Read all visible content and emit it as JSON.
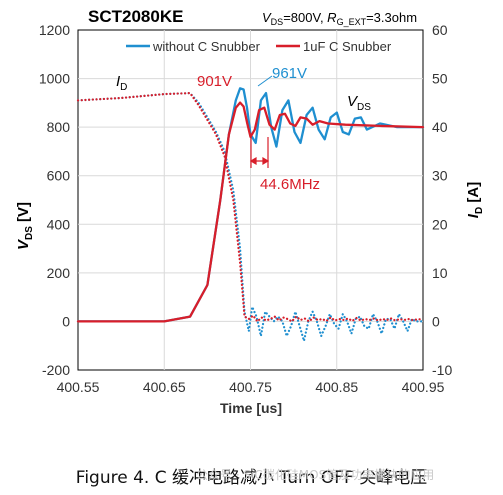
{
  "chart_data": {
    "type": "line",
    "title": "SCT2080KE",
    "conditions": {
      "vds_part": "V",
      "vds_sub": "DS",
      "vds_val": "=800V, ",
      "rg_part": "R",
      "rg_sub": "G_EXT",
      "rg_val": "=3.3ohm"
    },
    "xlabel": "Time [us]",
    "ylabel_left": {
      "main": "V",
      "sub": "DS",
      "unit": "  [V]"
    },
    "ylabel_right": {
      "main": "I",
      "sub": "D",
      "unit": "  [A]"
    },
    "xlim": [
      400.55,
      400.95
    ],
    "ylim_left": [
      -200,
      1200
    ],
    "ylim_right": [
      -10,
      60
    ],
    "xticks": [
      "400.55",
      "400.65",
      "400.75",
      "400.85",
      "400.95"
    ],
    "yticks_left": [
      "-200",
      "0",
      "200",
      "400",
      "600",
      "800",
      "1000",
      "1200"
    ],
    "yticks_right": [
      "-10",
      "0",
      "10",
      "20",
      "30",
      "40",
      "50",
      "60"
    ],
    "legend": {
      "placement": "top-center",
      "entries": [
        "without C Snubber",
        "1uF C Snubber"
      ]
    },
    "colors": {
      "without": "#1f8fd0",
      "snubber": "#d81e2a"
    },
    "series": [
      {
        "name": "without C Snubber",
        "quantity": "V_DS",
        "axis": "left",
        "style": "solid",
        "x": [
          400.55,
          400.6,
          400.65,
          400.68,
          400.7,
          400.715,
          400.725,
          400.733,
          400.738,
          400.742,
          400.746,
          400.75,
          400.756,
          400.762,
          400.768,
          400.774,
          400.78,
          400.787,
          400.794,
          400.801,
          400.808,
          400.815,
          400.822,
          400.829,
          400.836,
          400.843,
          400.85,
          400.857,
          400.864,
          400.871,
          400.878,
          400.885,
          400.9,
          400.92,
          400.95
        ],
        "y": [
          0,
          0,
          0,
          20,
          150,
          500,
          770,
          910,
          960,
          955,
          880,
          770,
          735,
          910,
          940,
          800,
          720,
          870,
          910,
          780,
          735,
          850,
          880,
          790,
          750,
          840,
          860,
          780,
          770,
          835,
          840,
          790,
          815,
          800,
          800
        ]
      },
      {
        "name": "1uF C Snubber",
        "quantity": "V_DS",
        "axis": "left",
        "style": "solid",
        "x": [
          400.55,
          400.6,
          400.65,
          400.68,
          400.7,
          400.715,
          400.725,
          400.733,
          400.738,
          400.742,
          400.746,
          400.75,
          400.755,
          400.76,
          400.766,
          400.772,
          400.778,
          400.784,
          400.79,
          400.796,
          400.802,
          400.808,
          400.815,
          400.822,
          400.83,
          400.84,
          400.86,
          400.9,
          400.95
        ],
        "y": [
          0,
          0,
          0,
          20,
          150,
          500,
          770,
          880,
          901,
          885,
          820,
          760,
          790,
          870,
          880,
          810,
          790,
          850,
          855,
          815,
          805,
          840,
          835,
          810,
          825,
          815,
          810,
          805,
          800
        ]
      },
      {
        "name": "without C Snubber",
        "quantity": "I_D",
        "axis": "right",
        "style": "dotted",
        "x": [
          400.55,
          400.6,
          400.65,
          400.68,
          400.69,
          400.7,
          400.71,
          400.72,
          400.73,
          400.738,
          400.743,
          400.748,
          400.752,
          400.757,
          400.762,
          400.767,
          400.772,
          400.777,
          400.782,
          400.787,
          400.792,
          400.797,
          400.802,
          400.807,
          400.812,
          400.817,
          400.822,
          400.827,
          400.832,
          400.837,
          400.842,
          400.847,
          400.852,
          400.857,
          400.862,
          400.867,
          400.872,
          400.877,
          400.882,
          400.887,
          400.892,
          400.897,
          400.902,
          400.907,
          400.912,
          400.917,
          400.922,
          400.927,
          400.932,
          400.937,
          400.942,
          400.95
        ],
        "y": [
          45.5,
          46,
          46.8,
          47,
          45,
          42,
          39,
          35,
          27,
          15,
          2,
          -2,
          3,
          1,
          -3,
          2,
          1,
          0,
          1,
          0,
          -3,
          -1,
          2,
          -1,
          -4,
          0,
          2,
          0,
          -3,
          -1,
          1.5,
          -0.5,
          -1.5,
          1.5,
          0,
          -2.5,
          0.5,
          1,
          -1,
          -1.5,
          1.5,
          0,
          -2.5,
          0.5,
          0.5,
          -1.5,
          1.5,
          0,
          -2,
          0.5,
          0,
          0
        ]
      },
      {
        "name": "1uF C Snubber",
        "quantity": "I_D",
        "axis": "right",
        "style": "dotted",
        "x": [
          400.55,
          400.6,
          400.65,
          400.68,
          400.69,
          400.7,
          400.71,
          400.72,
          400.73,
          400.738,
          400.743,
          400.748,
          400.753,
          400.758,
          400.763,
          400.768,
          400.773,
          400.778,
          400.783,
          400.788,
          400.793,
          400.798,
          400.803,
          400.808,
          400.813,
          400.818,
          400.823,
          400.828,
          400.833,
          400.838,
          400.843,
          400.848,
          400.853,
          400.858,
          400.863,
          400.868,
          400.873,
          400.878,
          400.883,
          400.888,
          400.893,
          400.898,
          400.903,
          400.908,
          400.913,
          400.918,
          400.923,
          400.928,
          400.933,
          400.938,
          400.943,
          400.95
        ],
        "y": [
          45.5,
          46,
          46.8,
          47,
          44.5,
          41.5,
          38.5,
          34,
          25,
          12,
          1,
          0.5,
          1.2,
          0,
          0.8,
          0.2,
          0.5,
          1,
          0.2,
          0.8,
          0.5,
          0,
          1,
          0.3,
          0.6,
          0,
          0.8,
          0.3,
          0.5,
          0.1,
          0.8,
          0.2,
          0.5,
          0.3,
          0.6,
          0.1,
          0.7,
          0.2,
          0.5,
          0.3,
          0.6,
          0.2,
          0.5,
          0.3,
          0.6,
          0.2,
          0.5,
          0.3,
          0.5,
          0.3,
          0.4,
          0.5
        ]
      }
    ],
    "annotations": {
      "id_label": {
        "main": "I",
        "sub": "D"
      },
      "vds_label": {
        "main": "V",
        "sub": "DS"
      },
      "peak_red": "901V",
      "peak_blue": "961V",
      "ring_freq": "44.6MHz"
    }
  },
  "caption": "Figure 4. C 缓冲电路减小 Turn OFF 尖峰电压",
  "watermark": "公众号 · SiC碳化硅MOS管及功率模块的应用"
}
